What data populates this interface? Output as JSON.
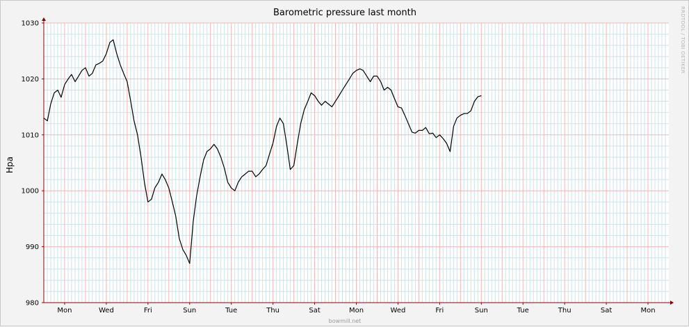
{
  "chart_data": {
    "type": "line",
    "title": "Barometric pressure last month",
    "ylabel": "Hpa",
    "xlabel": "",
    "ylim": [
      980,
      1030
    ],
    "yticks": [
      980,
      990,
      1000,
      1010,
      1020,
      1030
    ],
    "xlim": [
      0,
      30
    ],
    "xticks": [
      {
        "x": 1,
        "label": "Mon"
      },
      {
        "x": 3,
        "label": "Wed"
      },
      {
        "x": 5,
        "label": "Fri"
      },
      {
        "x": 7,
        "label": "Sun"
      },
      {
        "x": 9,
        "label": "Tue"
      },
      {
        "x": 11,
        "label": "Thu"
      },
      {
        "x": 13,
        "label": "Sat"
      },
      {
        "x": 15,
        "label": "Mon"
      },
      {
        "x": 17,
        "label": "Wed"
      },
      {
        "x": 19,
        "label": "Fri"
      },
      {
        "x": 21,
        "label": "Sun"
      },
      {
        "x": 23,
        "label": "Tue"
      },
      {
        "x": 25,
        "label": "Thu"
      },
      {
        "x": 27,
        "label": "Sat"
      },
      {
        "x": 29,
        "label": "Mon"
      }
    ],
    "grid": true,
    "series": [
      {
        "color": "#000000",
        "points": [
          [
            0.0,
            1013.0
          ],
          [
            0.17,
            1012.5
          ],
          [
            0.33,
            1015.5
          ],
          [
            0.5,
            1017.5
          ],
          [
            0.67,
            1018.0
          ],
          [
            0.83,
            1016.7
          ],
          [
            1.0,
            1019.0
          ],
          [
            1.17,
            1020.0
          ],
          [
            1.33,
            1020.8
          ],
          [
            1.5,
            1019.5
          ],
          [
            1.67,
            1020.5
          ],
          [
            1.83,
            1021.5
          ],
          [
            2.0,
            1022.0
          ],
          [
            2.17,
            1020.5
          ],
          [
            2.33,
            1021.0
          ],
          [
            2.5,
            1022.5
          ],
          [
            2.67,
            1022.8
          ],
          [
            2.83,
            1023.2
          ],
          [
            3.0,
            1024.5
          ],
          [
            3.17,
            1026.5
          ],
          [
            3.33,
            1027.0
          ],
          [
            3.5,
            1024.5
          ],
          [
            3.67,
            1022.5
          ],
          [
            3.83,
            1021.0
          ],
          [
            4.0,
            1019.5
          ],
          [
            4.17,
            1016.0
          ],
          [
            4.33,
            1012.5
          ],
          [
            4.5,
            1010.0
          ],
          [
            4.67,
            1006.0
          ],
          [
            4.83,
            1001.5
          ],
          [
            5.0,
            998.0
          ],
          [
            5.17,
            998.5
          ],
          [
            5.33,
            1000.5
          ],
          [
            5.5,
            1001.5
          ],
          [
            5.67,
            1003.0
          ],
          [
            5.83,
            1002.0
          ],
          [
            6.0,
            1000.5
          ],
          [
            6.17,
            998.0
          ],
          [
            6.33,
            995.5
          ],
          [
            6.5,
            991.5
          ],
          [
            6.67,
            989.5
          ],
          [
            6.83,
            988.5
          ],
          [
            7.0,
            987.0
          ],
          [
            7.17,
            994.5
          ],
          [
            7.33,
            999.0
          ],
          [
            7.5,
            1002.5
          ],
          [
            7.67,
            1005.5
          ],
          [
            7.83,
            1007.0
          ],
          [
            8.0,
            1007.5
          ],
          [
            8.17,
            1008.3
          ],
          [
            8.33,
            1007.5
          ],
          [
            8.5,
            1006.0
          ],
          [
            8.67,
            1004.0
          ],
          [
            8.83,
            1001.5
          ],
          [
            9.0,
            1000.5
          ],
          [
            9.17,
            1000.0
          ],
          [
            9.33,
            1001.5
          ],
          [
            9.5,
            1002.5
          ],
          [
            9.67,
            1003.0
          ],
          [
            9.83,
            1003.5
          ],
          [
            10.0,
            1003.5
          ],
          [
            10.17,
            1002.5
          ],
          [
            10.33,
            1003.0
          ],
          [
            10.5,
            1003.8
          ],
          [
            10.67,
            1004.5
          ],
          [
            10.83,
            1006.5
          ],
          [
            11.0,
            1008.5
          ],
          [
            11.17,
            1011.5
          ],
          [
            11.33,
            1013.0
          ],
          [
            11.5,
            1012.0
          ],
          [
            11.67,
            1008.0
          ],
          [
            11.83,
            1003.8
          ],
          [
            12.0,
            1004.5
          ],
          [
            12.17,
            1008.5
          ],
          [
            12.33,
            1012.0
          ],
          [
            12.5,
            1014.5
          ],
          [
            12.67,
            1016.0
          ],
          [
            12.83,
            1017.5
          ],
          [
            13.0,
            1017.0
          ],
          [
            13.17,
            1016.0
          ],
          [
            13.33,
            1015.3
          ],
          [
            13.5,
            1016.0
          ],
          [
            13.67,
            1015.5
          ],
          [
            13.83,
            1015.0
          ],
          [
            14.0,
            1016.0
          ],
          [
            14.17,
            1017.0
          ],
          [
            14.33,
            1018.0
          ],
          [
            14.5,
            1019.0
          ],
          [
            14.67,
            1020.0
          ],
          [
            14.83,
            1021.0
          ],
          [
            15.0,
            1021.5
          ],
          [
            15.17,
            1021.8
          ],
          [
            15.33,
            1021.5
          ],
          [
            15.5,
            1020.5
          ],
          [
            15.67,
            1019.5
          ],
          [
            15.83,
            1020.5
          ],
          [
            16.0,
            1020.5
          ],
          [
            16.17,
            1019.5
          ],
          [
            16.33,
            1018.0
          ],
          [
            16.5,
            1018.5
          ],
          [
            16.67,
            1018.0
          ],
          [
            16.83,
            1016.5
          ],
          [
            17.0,
            1015.0
          ],
          [
            17.17,
            1014.8
          ],
          [
            17.33,
            1013.5
          ],
          [
            17.5,
            1012.0
          ],
          [
            17.67,
            1010.5
          ],
          [
            17.83,
            1010.3
          ],
          [
            18.0,
            1010.8
          ],
          [
            18.17,
            1010.8
          ],
          [
            18.33,
            1011.3
          ],
          [
            18.5,
            1010.2
          ],
          [
            18.67,
            1010.3
          ],
          [
            18.83,
            1009.5
          ],
          [
            19.0,
            1010.0
          ],
          [
            19.17,
            1009.3
          ],
          [
            19.33,
            1008.5
          ],
          [
            19.5,
            1007.0
          ],
          [
            19.67,
            1011.5
          ],
          [
            19.83,
            1013.0
          ],
          [
            20.0,
            1013.5
          ],
          [
            20.17,
            1013.8
          ],
          [
            20.33,
            1013.8
          ],
          [
            20.5,
            1014.3
          ],
          [
            20.67,
            1016.0
          ],
          [
            20.83,
            1016.8
          ],
          [
            21.0,
            1017.0
          ]
        ]
      }
    ]
  },
  "watermark": "RRDTOOL / TOBI OETIKER",
  "footer": "bowmill.net"
}
